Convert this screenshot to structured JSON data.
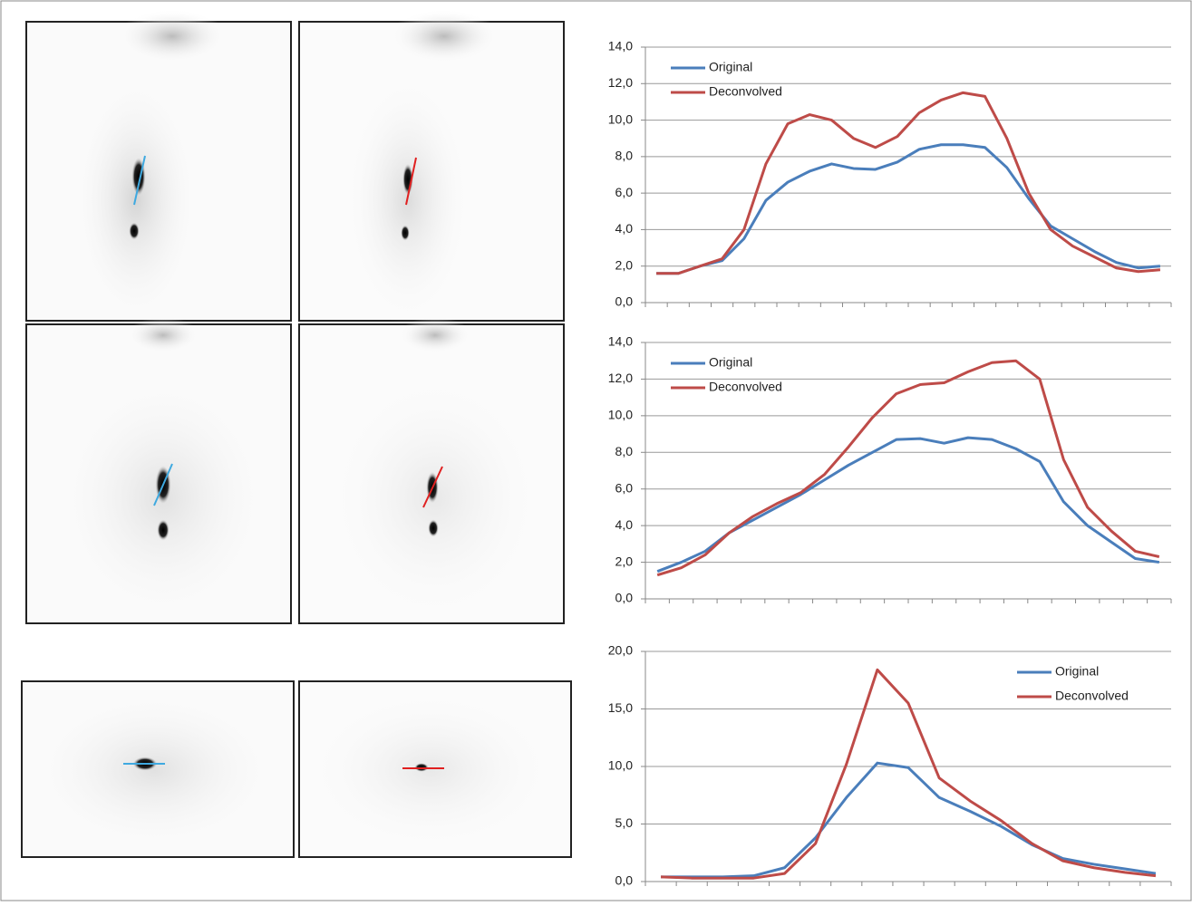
{
  "chart_data": [
    {
      "type": "line",
      "categories": [
        null,
        null,
        null,
        null,
        null,
        null,
        null,
        null,
        null,
        null,
        null,
        null,
        null,
        null,
        null,
        null,
        null,
        null,
        null,
        null,
        null,
        null,
        null,
        null
      ],
      "series": [
        {
          "name": "Original",
          "color": "#4a7ebb",
          "values": [
            1.6,
            1.6,
            2.0,
            2.3,
            3.5,
            5.6,
            6.6,
            7.2,
            7.6,
            7.35,
            7.3,
            7.7,
            8.4,
            8.65,
            8.65,
            8.5,
            7.4,
            5.7,
            4.2,
            3.5,
            2.8,
            2.2,
            1.9,
            2.0
          ]
        },
        {
          "name": "Deconvolved",
          "color": "#be4b48",
          "values": [
            1.6,
            1.6,
            2.0,
            2.4,
            4.0,
            7.6,
            9.8,
            10.3,
            10.0,
            9.0,
            8.5,
            9.1,
            10.4,
            11.1,
            11.5,
            11.3,
            9.0,
            6.0,
            4.0,
            3.1,
            2.5,
            1.9,
            1.7,
            1.8
          ]
        }
      ],
      "ylim": [
        0,
        14
      ],
      "yticks": [
        {
          "value": 0,
          "label": "0,0"
        },
        {
          "value": 2,
          "label": "2,0"
        },
        {
          "value": 4,
          "label": "4,0"
        },
        {
          "value": 6,
          "label": "6,0"
        },
        {
          "value": 8,
          "label": "8,0"
        },
        {
          "value": 10,
          "label": "10,0"
        },
        {
          "value": 12,
          "label": "12,0"
        },
        {
          "value": 14,
          "label": "14,0"
        }
      ],
      "grid": true,
      "legend": "top-left"
    },
    {
      "type": "line",
      "categories": [
        null,
        null,
        null,
        null,
        null,
        null,
        null,
        null,
        null,
        null,
        null,
        null,
        null,
        null,
        null,
        null,
        null,
        null,
        null,
        null,
        null,
        null
      ],
      "series": [
        {
          "name": "Original",
          "color": "#4a7ebb",
          "values": [
            1.5,
            2.0,
            2.6,
            3.6,
            4.3,
            5.0,
            5.7,
            6.5,
            7.3,
            8.0,
            8.7,
            8.75,
            8.5,
            8.8,
            8.7,
            8.2,
            7.5,
            5.3,
            4.0,
            3.1,
            2.2,
            2.0
          ]
        },
        {
          "name": "Deconvolved",
          "color": "#be4b48",
          "values": [
            1.3,
            1.7,
            2.4,
            3.6,
            4.5,
            5.2,
            5.8,
            6.8,
            8.3,
            9.9,
            11.2,
            11.7,
            11.8,
            12.4,
            12.9,
            13.0,
            12.0,
            7.6,
            5.0,
            3.7,
            2.6,
            2.3
          ]
        }
      ],
      "ylim": [
        0,
        14
      ],
      "yticks": [
        {
          "value": 0,
          "label": "0,0"
        },
        {
          "value": 2,
          "label": "2,0"
        },
        {
          "value": 4,
          "label": "4,0"
        },
        {
          "value": 6,
          "label": "6,0"
        },
        {
          "value": 8,
          "label": "8,0"
        },
        {
          "value": 10,
          "label": "10,0"
        },
        {
          "value": 12,
          "label": "12,0"
        },
        {
          "value": 14,
          "label": "14,0"
        }
      ],
      "grid": true,
      "legend": "top-left"
    },
    {
      "type": "line",
      "categories": [
        null,
        null,
        null,
        null,
        null,
        null,
        null,
        null,
        null,
        null,
        null,
        null,
        null,
        null,
        null,
        null,
        null
      ],
      "series": [
        {
          "name": "Original",
          "color": "#4a7ebb",
          "values": [
            0.4,
            0.4,
            0.4,
            0.5,
            1.2,
            3.8,
            7.3,
            10.3,
            9.9,
            7.3,
            6.1,
            4.8,
            3.2,
            2.0,
            1.5,
            1.1,
            0.7
          ]
        },
        {
          "name": "Deconvolved",
          "color": "#be4b48",
          "values": [
            0.4,
            0.3,
            0.3,
            0.3,
            0.7,
            3.3,
            10.2,
            18.4,
            15.5,
            9.0,
            7.0,
            5.3,
            3.3,
            1.8,
            1.2,
            0.8,
            0.5
          ]
        }
      ],
      "ylim": [
        0,
        20
      ],
      "yticks": [
        {
          "value": 0,
          "label": "0,0"
        },
        {
          "value": 5,
          "label": "5,0"
        },
        {
          "value": 10,
          "label": "10,0"
        },
        {
          "value": 15,
          "label": "15,0"
        },
        {
          "value": 20,
          "label": "20,0"
        }
      ],
      "grid": true,
      "legend": "top-right"
    }
  ]
}
